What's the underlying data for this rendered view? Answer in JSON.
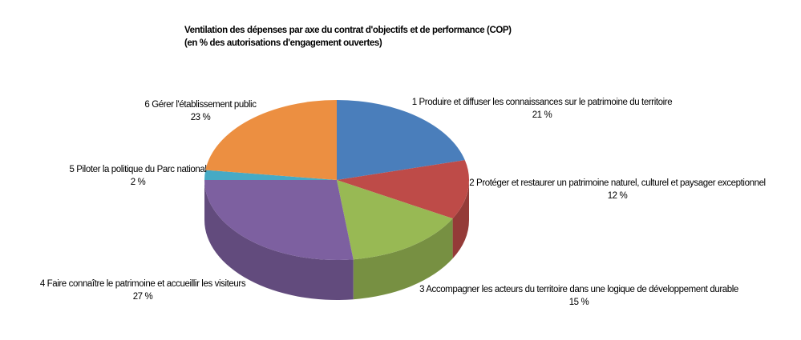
{
  "chart_data": {
    "type": "pie",
    "title": "Ventilation des dépenses par axe du contrat d'objectifs et de performance (COP)",
    "subtitle": "(en % des autorisations d'engagement ouvertes)",
    "categories": [
      "1 Produire et diffuser les connaissances sur le patrimoine du territoire",
      "2 Protéger et restaurer un patrimoine naturel, culturel et paysager exceptionnel",
      "3 Accompagner les acteurs du territoire dans une logique de développement durable",
      "4 Faire connaître le patrimoine et accueillir les visiteurs",
      "5 Piloter la politique du Parc national",
      "6 Gérer l'établissement public"
    ],
    "values": [
      21,
      12,
      15,
      27,
      2,
      23
    ],
    "value_labels": [
      "21 %",
      "12 %",
      "15 %",
      "27 %",
      "2 %",
      "23 %"
    ],
    "colors": [
      "#4a7ebb",
      "#be4b48",
      "#98b954",
      "#7d60a0",
      "#46aac5",
      "#ec8f41"
    ]
  }
}
